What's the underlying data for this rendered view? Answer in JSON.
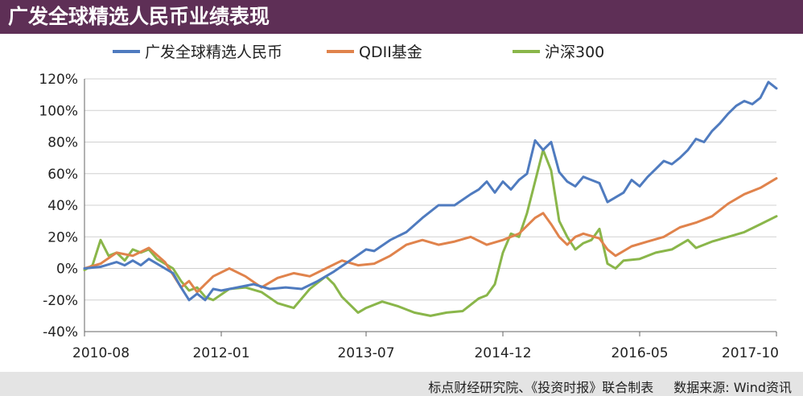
{
  "title": "广发全球精选人民币业绩表现",
  "footer": {
    "note": "标点财经研究院、《投资时报》联合制表",
    "source": "数据来源: Wind资讯"
  },
  "colors": {
    "background": "#ffffff",
    "header": "#5e2f56",
    "footer": "#e4e4e4",
    "grid": "#d0d0d0",
    "axis": "#666666"
  },
  "chart_data": {
    "type": "line",
    "title": "广发全球精选人民币业绩表现",
    "xlabel": "",
    "ylabel": "",
    "x_ticks": [
      "2010-08",
      "2012-01",
      "2013-07",
      "2014-12",
      "2016-05",
      "2017-10"
    ],
    "y_ticks": [
      "120%",
      "100%",
      "80%",
      "60%",
      "40%",
      "20%",
      "0%",
      "-20%",
      "-40%"
    ],
    "ylim": [
      -40,
      120
    ],
    "xlim": [
      "2010-08",
      "2017-10"
    ],
    "grid": true,
    "legend_position": "top",
    "series": [
      {
        "name": "广发全球精选人民币",
        "color": "#4f7bbf",
        "points": [
          [
            "2010-08",
            0
          ],
          [
            "2010-10",
            1
          ],
          [
            "2010-12",
            4
          ],
          [
            "2011-01",
            2
          ],
          [
            "2011-02",
            5
          ],
          [
            "2011-03",
            2
          ],
          [
            "2011-04",
            6
          ],
          [
            "2011-05",
            3
          ],
          [
            "2011-06",
            0
          ],
          [
            "2011-07",
            -3
          ],
          [
            "2011-08",
            -12
          ],
          [
            "2011-09",
            -20
          ],
          [
            "2011-10",
            -16
          ],
          [
            "2011-11",
            -20
          ],
          [
            "2011-12",
            -13
          ],
          [
            "2012-01",
            -14
          ],
          [
            "2012-03",
            -12
          ],
          [
            "2012-05",
            -10
          ],
          [
            "2012-07",
            -13
          ],
          [
            "2012-09",
            -12
          ],
          [
            "2012-11",
            -13
          ],
          [
            "2013-01",
            -8
          ],
          [
            "2013-03",
            -2
          ],
          [
            "2013-05",
            5
          ],
          [
            "2013-07",
            12
          ],
          [
            "2013-08",
            11
          ],
          [
            "2013-10",
            18
          ],
          [
            "2013-12",
            23
          ],
          [
            "2014-02",
            32
          ],
          [
            "2014-04",
            40
          ],
          [
            "2014-06",
            40
          ],
          [
            "2014-08",
            47
          ],
          [
            "2014-09",
            50
          ],
          [
            "2014-10",
            55
          ],
          [
            "2014-11",
            48
          ],
          [
            "2014-12",
            55
          ],
          [
            "2015-01",
            50
          ],
          [
            "2015-02",
            56
          ],
          [
            "2015-03",
            60
          ],
          [
            "2015-04",
            81
          ],
          [
            "2015-05",
            75
          ],
          [
            "2015-06",
            80
          ],
          [
            "2015-07",
            61
          ],
          [
            "2015-08",
            55
          ],
          [
            "2015-09",
            52
          ],
          [
            "2015-10",
            58
          ],
          [
            "2015-11",
            56
          ],
          [
            "2015-12",
            54
          ],
          [
            "2016-01",
            42
          ],
          [
            "2016-02",
            45
          ],
          [
            "2016-03",
            48
          ],
          [
            "2016-04",
            56
          ],
          [
            "2016-05",
            52
          ],
          [
            "2016-06",
            58
          ],
          [
            "2016-07",
            63
          ],
          [
            "2016-08",
            68
          ],
          [
            "2016-09",
            66
          ],
          [
            "2016-10",
            70
          ],
          [
            "2016-11",
            75
          ],
          [
            "2016-12",
            82
          ],
          [
            "2017-01",
            80
          ],
          [
            "2017-02",
            87
          ],
          [
            "2017-03",
            92
          ],
          [
            "2017-04",
            98
          ],
          [
            "2017-05",
            103
          ],
          [
            "2017-06",
            106
          ],
          [
            "2017-07",
            104
          ],
          [
            "2017-08",
            108
          ],
          [
            "2017-09",
            118
          ],
          [
            "2017-10",
            114
          ]
        ]
      },
      {
        "name": "QDII基金",
        "color": "#e0834c",
        "points": [
          [
            "2010-08",
            0
          ],
          [
            "2010-10",
            3
          ],
          [
            "2010-12",
            10
          ],
          [
            "2011-02",
            8
          ],
          [
            "2011-04",
            13
          ],
          [
            "2011-06",
            4
          ],
          [
            "2011-08",
            -12
          ],
          [
            "2011-09",
            -8
          ],
          [
            "2011-10",
            -15
          ],
          [
            "2011-12",
            -5
          ],
          [
            "2012-02",
            0
          ],
          [
            "2012-04",
            -5
          ],
          [
            "2012-06",
            -12
          ],
          [
            "2012-08",
            -6
          ],
          [
            "2012-10",
            -3
          ],
          [
            "2012-12",
            -5
          ],
          [
            "2013-02",
            0
          ],
          [
            "2013-04",
            5
          ],
          [
            "2013-06",
            2
          ],
          [
            "2013-08",
            3
          ],
          [
            "2013-10",
            8
          ],
          [
            "2013-12",
            15
          ],
          [
            "2014-02",
            18
          ],
          [
            "2014-04",
            15
          ],
          [
            "2014-06",
            17
          ],
          [
            "2014-08",
            20
          ],
          [
            "2014-10",
            15
          ],
          [
            "2014-12",
            18
          ],
          [
            "2015-02",
            22
          ],
          [
            "2015-04",
            32
          ],
          [
            "2015-05",
            35
          ],
          [
            "2015-06",
            28
          ],
          [
            "2015-07",
            20
          ],
          [
            "2015-08",
            15
          ],
          [
            "2015-09",
            20
          ],
          [
            "2015-10",
            22
          ],
          [
            "2015-12",
            19
          ],
          [
            "2016-01",
            12
          ],
          [
            "2016-02",
            8
          ],
          [
            "2016-04",
            14
          ],
          [
            "2016-06",
            17
          ],
          [
            "2016-08",
            20
          ],
          [
            "2016-10",
            26
          ],
          [
            "2016-12",
            29
          ],
          [
            "2017-02",
            33
          ],
          [
            "2017-04",
            41
          ],
          [
            "2017-06",
            47
          ],
          [
            "2017-08",
            51
          ],
          [
            "2017-10",
            57
          ]
        ]
      },
      {
        "name": "沪深300",
        "color": "#8ab64a",
        "points": [
          [
            "2010-08",
            -1
          ],
          [
            "2010-09",
            2
          ],
          [
            "2010-10",
            18
          ],
          [
            "2010-11",
            8
          ],
          [
            "2010-12",
            10
          ],
          [
            "2011-01",
            5
          ],
          [
            "2011-02",
            12
          ],
          [
            "2011-03",
            10
          ],
          [
            "2011-04",
            12
          ],
          [
            "2011-05",
            6
          ],
          [
            "2011-06",
            3
          ],
          [
            "2011-07",
            0
          ],
          [
            "2011-08",
            -8
          ],
          [
            "2011-09",
            -14
          ],
          [
            "2011-10",
            -12
          ],
          [
            "2011-11",
            -18
          ],
          [
            "2011-12",
            -20
          ],
          [
            "2012-02",
            -13
          ],
          [
            "2012-04",
            -12
          ],
          [
            "2012-06",
            -15
          ],
          [
            "2012-08",
            -22
          ],
          [
            "2012-10",
            -25
          ],
          [
            "2012-12",
            -13
          ],
          [
            "2013-02",
            -5
          ],
          [
            "2013-03",
            -10
          ],
          [
            "2013-04",
            -18
          ],
          [
            "2013-06",
            -28
          ],
          [
            "2013-07",
            -25
          ],
          [
            "2013-09",
            -21
          ],
          [
            "2013-11",
            -24
          ],
          [
            "2014-01",
            -28
          ],
          [
            "2014-03",
            -30
          ],
          [
            "2014-05",
            -28
          ],
          [
            "2014-07",
            -27
          ],
          [
            "2014-09",
            -19
          ],
          [
            "2014-10",
            -17
          ],
          [
            "2014-11",
            -10
          ],
          [
            "2014-12",
            10
          ],
          [
            "2015-01",
            22
          ],
          [
            "2015-02",
            20
          ],
          [
            "2015-03",
            35
          ],
          [
            "2015-04",
            55
          ],
          [
            "2015-05",
            75
          ],
          [
            "2015-06",
            62
          ],
          [
            "2015-07",
            30
          ],
          [
            "2015-08",
            20
          ],
          [
            "2015-09",
            12
          ],
          [
            "2015-10",
            16
          ],
          [
            "2015-11",
            18
          ],
          [
            "2015-12",
            25
          ],
          [
            "2016-01",
            3
          ],
          [
            "2016-02",
            0
          ],
          [
            "2016-03",
            5
          ],
          [
            "2016-05",
            6
          ],
          [
            "2016-07",
            10
          ],
          [
            "2016-09",
            12
          ],
          [
            "2016-11",
            18
          ],
          [
            "2016-12",
            13
          ],
          [
            "2017-02",
            17
          ],
          [
            "2017-04",
            20
          ],
          [
            "2017-06",
            23
          ],
          [
            "2017-08",
            28
          ],
          [
            "2017-10",
            33
          ]
        ]
      }
    ]
  }
}
